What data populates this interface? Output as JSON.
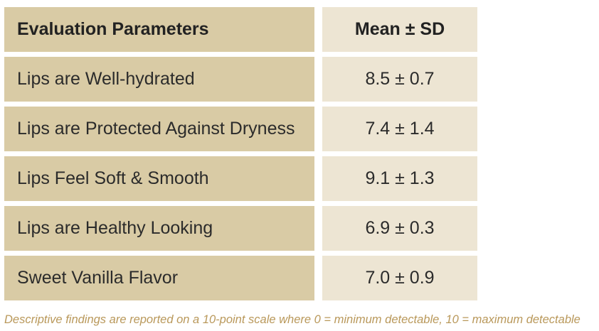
{
  "chart_data": {
    "type": "table",
    "columns": [
      "Evaluation Parameters",
      "Mean ± SD"
    ],
    "rows": [
      {
        "parameter": "Lips are Well-hydrated",
        "value": "8.5 ± 0.7",
        "mean": 8.5,
        "sd": 0.7
      },
      {
        "parameter": "Lips are Protected Against Dryness",
        "value": "7.4 ± 1.4",
        "mean": 7.4,
        "sd": 1.4
      },
      {
        "parameter": "Lips Feel Soft & Smooth",
        "value": "9.1 ± 1.3",
        "mean": 9.1,
        "sd": 1.3
      },
      {
        "parameter": "Lips are Healthy Looking",
        "value": "6.9 ± 0.3",
        "mean": 6.9,
        "sd": 0.3
      },
      {
        "parameter": "Sweet Vanilla Flavor",
        "value": "7.0 ± 0.9",
        "mean": 7.0,
        "sd": 0.9
      }
    ],
    "footnote": "Descriptive findings are reported on a 10-point scale where 0 = minimum detectable, 10 = maximum detectable"
  },
  "colors": {
    "parameter_cell": "#d9cba5",
    "value_cell": "#ede5d3",
    "footnote_text": "#b9985a"
  }
}
